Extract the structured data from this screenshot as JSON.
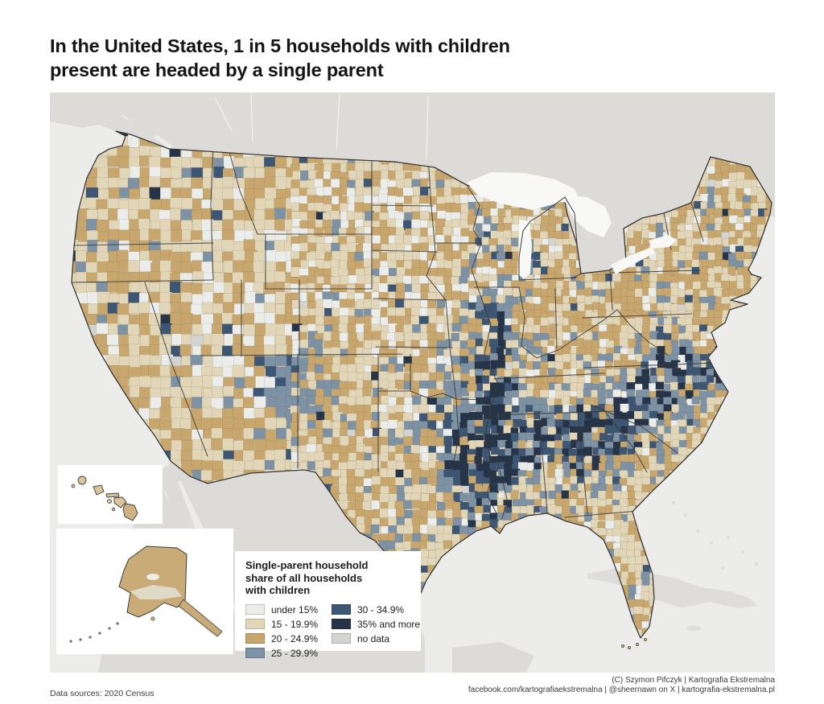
{
  "page": {
    "title_line1": "In the United States, 1 in 5 households with children",
    "title_line2": "present are headed by a single parent"
  },
  "legend": {
    "title_line1": "Single-parent household",
    "title_line2": "share of all households",
    "title_line3": "with children",
    "items": [
      {
        "label": "under 15%",
        "color": "#ebedea"
      },
      {
        "label": "15 - 19.9%",
        "color": "#e2d6b8"
      },
      {
        "label": "20 - 24.9%",
        "color": "#c8a76e"
      },
      {
        "label": "25 - 29.9%",
        "color": "#7d92a4"
      },
      {
        "label": "30 - 34.9%",
        "color": "#3d5674"
      },
      {
        "label": "35% and more",
        "color": "#253449"
      },
      {
        "label": "no data",
        "color": "#d3d3d1"
      }
    ]
  },
  "map": {
    "kind": "county choropleth of the United States with Alaska and Hawaii insets",
    "colors": {
      "ocean": "#ececea",
      "foreign_land": "#dcdbd8",
      "lakes": "#f8f8f6",
      "us_base": "#ddd0b0",
      "border": "#3a3a3a",
      "county_line": "rgba(92,78,50,0.28)"
    }
  },
  "footer": {
    "data_sources": "Data sources: 2020 Census",
    "credit_line1": "(C) Szymon Pifczyk | Kartografia Ekstremalna",
    "credit_line2": "facebook.com/kartografiaekstremalna | @sheernawn on X | kartografia-ekstremalna.pl"
  }
}
